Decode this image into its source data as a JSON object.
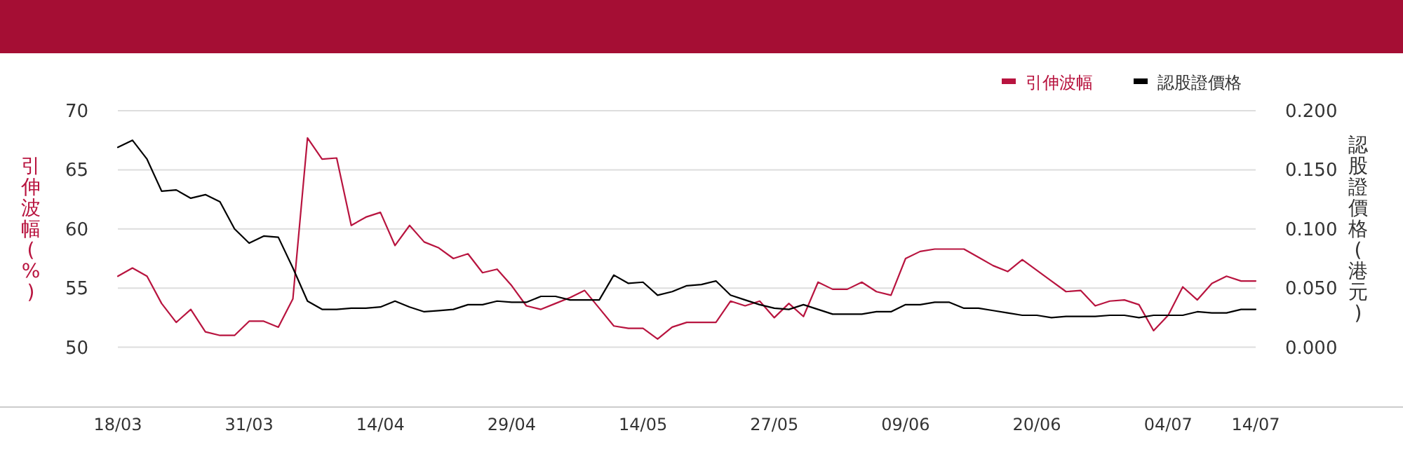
{
  "chart_data": {
    "type": "line",
    "categories": [
      "18/03",
      null,
      null,
      null,
      null,
      null,
      null,
      null,
      null,
      "31/03",
      null,
      null,
      null,
      null,
      null,
      null,
      null,
      null,
      "14/04",
      null,
      null,
      null,
      null,
      null,
      null,
      null,
      null,
      "29/04",
      null,
      null,
      null,
      null,
      null,
      null,
      null,
      null,
      "14/05",
      null,
      null,
      null,
      null,
      null,
      null,
      null,
      null,
      "27/05",
      null,
      null,
      null,
      null,
      null,
      null,
      null,
      null,
      "09/06",
      null,
      null,
      null,
      null,
      null,
      null,
      null,
      null,
      "20/06",
      null,
      null,
      null,
      null,
      null,
      null,
      null,
      null,
      "04/07",
      null,
      null,
      null,
      null,
      null,
      "14/07"
    ],
    "ylabel": "引伸波幅(%)",
    "y2label": "認股證價格(港元)",
    "ylim": [
      45,
      70
    ],
    "yticks": [
      50,
      55,
      60,
      65,
      70
    ],
    "y2lim": [
      -0.05,
      0.2
    ],
    "y2ticks": [
      {
        "value": 0,
        "label": "0.000"
      },
      {
        "value": 0.05,
        "label": "0.050"
      },
      {
        "value": 0.1,
        "label": "0.100"
      },
      {
        "value": 0.15,
        "label": "0.150"
      },
      {
        "value": 0.2,
        "label": "0.200"
      }
    ],
    "grid": "y",
    "legend": "top right",
    "line_style": "solid",
    "series": [
      {
        "name": "引伸波幅",
        "color": "#b8143f",
        "values": [
          56.0,
          56.7,
          56.0,
          53.7,
          52.1,
          53.2,
          51.3,
          51.0,
          51.0,
          52.2,
          52.2,
          51.7,
          54.1,
          67.7,
          65.9,
          66.0,
          60.3,
          61.0,
          61.4,
          58.6,
          60.3,
          58.9,
          58.4,
          57.5,
          57.9,
          56.3,
          56.6,
          55.2,
          53.5,
          53.2,
          53.7,
          54.2,
          54.8,
          53.3,
          51.8,
          51.6,
          51.6,
          50.7,
          51.7,
          52.1,
          52.1,
          52.1,
          53.9,
          53.5,
          53.9,
          52.5,
          53.7,
          52.6,
          55.5,
          54.9,
          54.9,
          55.5,
          54.7,
          54.4,
          57.5,
          58.1,
          58.3,
          58.3,
          58.3,
          57.6,
          56.9,
          56.4,
          57.4,
          56.5,
          55.6,
          54.7,
          54.8,
          53.5,
          53.9,
          54.0,
          53.6,
          51.4,
          52.7,
          55.1,
          54.0,
          55.4,
          56.0,
          55.6,
          55.6
        ]
      },
      {
        "name": "認股證價格",
        "color": "#000000",
        "axis": "y2",
        "values": [
          0.169,
          0.175,
          0.159,
          0.132,
          0.133,
          0.126,
          0.129,
          0.123,
          0.1,
          0.088,
          0.094,
          0.093,
          0.067,
          0.039,
          0.032,
          0.032,
          0.033,
          0.033,
          0.034,
          0.039,
          0.034,
          0.03,
          0.031,
          0.032,
          0.036,
          0.036,
          0.039,
          0.038,
          0.038,
          0.043,
          0.043,
          0.04,
          0.04,
          0.04,
          0.061,
          0.054,
          0.055,
          0.044,
          0.047,
          0.052,
          0.053,
          0.056,
          0.044,
          0.04,
          0.036,
          0.033,
          0.032,
          0.036,
          0.032,
          0.028,
          0.028,
          0.028,
          0.03,
          0.03,
          0.036,
          0.036,
          0.038,
          0.038,
          0.033,
          0.033,
          0.031,
          0.029,
          0.027,
          0.027,
          0.025,
          0.026,
          0.026,
          0.026,
          0.027,
          0.027,
          0.025,
          0.027,
          0.027,
          0.027,
          0.03,
          0.029,
          0.029,
          0.032,
          0.032
        ]
      }
    ]
  }
}
